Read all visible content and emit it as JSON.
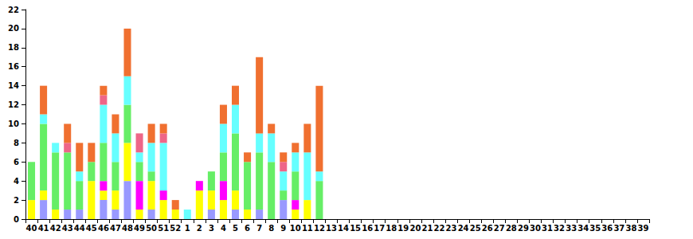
{
  "chart_data": {
    "type": "bar",
    "stacked": true,
    "grid": false,
    "categories": [
      "40",
      "41",
      "42",
      "43",
      "44",
      "45",
      "46",
      "47",
      "48",
      "49",
      "50",
      "51",
      "52",
      "1",
      "2",
      "3",
      "4",
      "5",
      "6",
      "7",
      "8",
      "9",
      "10",
      "11",
      "12",
      "13",
      "14",
      "15",
      "16",
      "17",
      "18",
      "19",
      "20",
      "21",
      "22",
      "23",
      "24",
      "25",
      "26",
      "27",
      "28",
      "29",
      "30",
      "31",
      "32",
      "33",
      "34",
      "35",
      "36",
      "37",
      "38",
      "39"
    ],
    "ylim": [
      0,
      22
    ],
    "yticks": [
      0,
      2,
      4,
      6,
      8,
      10,
      12,
      14,
      16,
      18,
      20,
      22
    ],
    "series": [
      {
        "color": "#9999ff",
        "values": [
          0,
          2,
          0,
          1,
          1,
          0,
          2,
          1,
          4,
          0,
          1,
          0,
          0,
          0,
          0,
          1,
          0,
          1,
          0,
          1,
          0,
          2,
          0,
          0,
          0,
          null,
          null,
          null,
          null,
          null,
          null,
          null,
          null,
          null,
          null,
          null,
          null,
          null,
          null,
          null,
          null,
          null,
          null,
          null,
          null,
          null,
          null,
          null,
          null,
          null,
          null,
          null
        ]
      },
      {
        "color": "#ffff00",
        "values": [
          2,
          1,
          1,
          0,
          0,
          4,
          1,
          2,
          4,
          1,
          3,
          2,
          1,
          0,
          3,
          2,
          2,
          2,
          1,
          0,
          0,
          0,
          1,
          2,
          0,
          null,
          null,
          null,
          null,
          null,
          null,
          null,
          null,
          null,
          null,
          null,
          null,
          null,
          null,
          null,
          null,
          null,
          null,
          null,
          null,
          null,
          null,
          null,
          null,
          null,
          null,
          null
        ]
      },
      {
        "color": "#ff00ff",
        "values": [
          0,
          0,
          0,
          0,
          0,
          0,
          1,
          0,
          0,
          3,
          0,
          1,
          0,
          0,
          1,
          0,
          2,
          0,
          0,
          0,
          0,
          0,
          1,
          0,
          0,
          null,
          null,
          null,
          null,
          null,
          null,
          null,
          null,
          null,
          null,
          null,
          null,
          null,
          null,
          null,
          null,
          null,
          null,
          null,
          null,
          null,
          null,
          null,
          null,
          null,
          null,
          null
        ]
      },
      {
        "color": "#66ee66",
        "values": [
          4,
          7,
          6,
          6,
          3,
          2,
          4,
          3,
          4,
          2,
          1,
          0,
          0,
          0,
          0,
          2,
          3,
          6,
          5,
          6,
          6,
          1,
          3,
          0,
          4,
          null,
          null,
          null,
          null,
          null,
          null,
          null,
          null,
          null,
          null,
          null,
          null,
          null,
          null,
          null,
          null,
          null,
          null,
          null,
          null,
          null,
          null,
          null,
          null,
          null,
          null,
          null
        ]
      },
      {
        "color": "#66ffff",
        "values": [
          0,
          1,
          1,
          0,
          1,
          0,
          4,
          3,
          3,
          1,
          3,
          5,
          0,
          1,
          0,
          0,
          3,
          3,
          0,
          2,
          3,
          2,
          2,
          5,
          1,
          null,
          null,
          null,
          null,
          null,
          null,
          null,
          null,
          null,
          null,
          null,
          null,
          null,
          null,
          null,
          null,
          null,
          null,
          null,
          null,
          null,
          null,
          null,
          null,
          null,
          null,
          null
        ]
      },
      {
        "color": "#ee6688",
        "values": [
          0,
          0,
          0,
          1,
          0,
          0,
          1,
          0,
          0,
          2,
          0,
          1,
          0,
          0,
          0,
          0,
          0,
          0,
          0,
          0,
          0,
          1,
          0,
          0,
          0,
          null,
          null,
          null,
          null,
          null,
          null,
          null,
          null,
          null,
          null,
          null,
          null,
          null,
          null,
          null,
          null,
          null,
          null,
          null,
          null,
          null,
          null,
          null,
          null,
          null,
          null,
          null
        ]
      },
      {
        "color": "#f07030",
        "values": [
          0,
          3,
          0,
          2,
          3,
          2,
          1,
          2,
          5,
          0,
          2,
          1,
          1,
          0,
          0,
          0,
          2,
          2,
          1,
          8,
          1,
          1,
          1,
          3,
          9,
          null,
          null,
          null,
          null,
          null,
          null,
          null,
          null,
          null,
          null,
          null,
          null,
          null,
          null,
          null,
          null,
          null,
          null,
          null,
          null,
          null,
          null,
          null,
          null,
          null,
          null,
          null
        ]
      }
    ]
  }
}
